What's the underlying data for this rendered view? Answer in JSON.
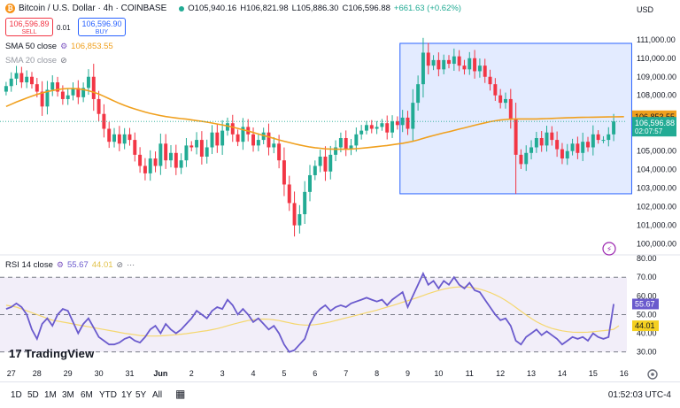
{
  "header": {
    "symbol": "Bitcoin / U.S. Dollar · 4h · COINBASE",
    "open": "O105,940.16",
    "high": "H106,821.98",
    "low": "L105,886.30",
    "close": "C106,596.88",
    "change": "+661.63 (+0.62%)",
    "sell_price": "106,596.89",
    "sell_label": "SELL",
    "spread": "0.01",
    "buy_price": "106,596.90",
    "buy_label": "BUY",
    "currency": "USD"
  },
  "legend": {
    "sma50": "SMA 50 close",
    "sma50_value": "106,853.55",
    "sma20": "SMA 20 close",
    "rsi": "RSI 14 close",
    "rsi_value": "55.67",
    "rsi_ma_value": "44.01"
  },
  "colors": {
    "up": "#22ab94",
    "down": "#f23645",
    "sma": "#f0a01e",
    "rsi": "#6a5acd",
    "rsi_ma": "#f5d76e",
    "box": "#2962ff"
  },
  "logo": "TradingView",
  "timeframes": [
    "1D",
    "5D",
    "1M",
    "3M",
    "6M",
    "YTD",
    "1Y",
    "5Y",
    "All"
  ],
  "clock": "01:52:03 UTC-4",
  "chart_data": [
    {
      "type": "candlestick",
      "title": "Bitcoin / U.S. Dollar · 4h · COINBASE",
      "ylim": [
        99600,
        111800
      ],
      "y_ticks": [
        "111,000.00",
        "110,000.00",
        "109,000.00",
        "108,000.00",
        "107,000.00",
        "106,000.00",
        "105,000.00",
        "104,000.00",
        "103,000.00",
        "102,000.00",
        "101,000.00",
        "100,000.00"
      ],
      "y_tick_values": [
        111000,
        110000,
        109000,
        108000,
        107000,
        106000,
        105000,
        104000,
        103000,
        102000,
        101000,
        100000
      ],
      "x_ticks": [
        "27",
        "28",
        "29",
        "30",
        "31",
        "Jun",
        "2",
        "3",
        "4",
        "5",
        "6",
        "7",
        "8",
        "9",
        "10",
        "11",
        "12",
        "13",
        "14",
        "15",
        "16"
      ],
      "x_tick_index": [
        1,
        6,
        12,
        18,
        24,
        30,
        36,
        42,
        48,
        54,
        60,
        66,
        72,
        78,
        84,
        90,
        96,
        102,
        108,
        114,
        120
      ],
      "close_label": "106,596.88",
      "close_value": 106596.88,
      "countdown": "02:07:57",
      "sma_label": "106,853.55",
      "sma_value": 106853.55,
      "box_range": {
        "i0": 77,
        "i1": 121,
        "low": 102700,
        "high": 110800
      },
      "closes": [
        108500,
        108900,
        109200,
        108700,
        109000,
        108600,
        108200,
        107400,
        108300,
        108700,
        108200,
        107800,
        108000,
        108400,
        107900,
        108400,
        109000,
        107800,
        107000,
        106200,
        105500,
        105900,
        105400,
        105900,
        105600,
        104800,
        104200,
        103800,
        104600,
        104200,
        105400,
        104500,
        104900,
        104100,
        104500,
        105300,
        105200,
        105600,
        104700,
        105200,
        106000,
        105300,
        106100,
        106500,
        105900,
        105500,
        106300,
        105900,
        105300,
        105600,
        106000,
        105200,
        105400,
        104500,
        103200,
        102200,
        101000,
        101600,
        102800,
        103700,
        104200,
        104700,
        103900,
        104800,
        105200,
        105700,
        105100,
        105300,
        105900,
        106100,
        106400,
        106200,
        106300,
        106500,
        106000,
        106600,
        106400,
        106800,
        106200,
        107600,
        108600,
        110300,
        109600,
        109900,
        109400,
        109900,
        109700,
        110100,
        109600,
        109400,
        110000,
        109300,
        109600,
        109000,
        108600,
        108000,
        107600,
        107800,
        106700,
        104800,
        104300,
        104900,
        105200,
        105700,
        105300,
        106000,
        105600,
        105100,
        104600,
        105000,
        105400,
        104900,
        105500,
        105200,
        105900,
        105600,
        105600,
        105900,
        106596.88
      ],
      "sma50": [
        107400,
        107520,
        107640,
        107750,
        107860,
        107960,
        108050,
        108130,
        108200,
        108260,
        108310,
        108350,
        108370,
        108370,
        108350,
        108310,
        108250,
        108170,
        108070,
        107950,
        107820,
        107690,
        107570,
        107460,
        107360,
        107270,
        107180,
        107100,
        107030,
        106970,
        106910,
        106860,
        106820,
        106780,
        106750,
        106720,
        106680,
        106640,
        106600,
        106560,
        106510,
        106460,
        106410,
        106350,
        106290,
        106220,
        106150,
        106080,
        106000,
        105920,
        105840,
        105760,
        105680,
        105600,
        105530,
        105460,
        105390,
        105330,
        105270,
        105220,
        105180,
        105150,
        105120,
        105110,
        105100,
        105100,
        105100,
        105110,
        105130,
        105150,
        105180,
        105210,
        105240,
        105270,
        105300,
        105340,
        105380,
        105420,
        105470,
        105530,
        105600,
        105680,
        105760,
        105840,
        105910,
        105980,
        106040,
        106110,
        106180,
        106250,
        106320,
        106390,
        106460,
        106520,
        106580,
        106630,
        106670,
        106700,
        106720,
        106730,
        106730,
        106730,
        106730,
        106730,
        106740,
        106750,
        106760,
        106770,
        106780,
        106790,
        106800,
        106810,
        106815,
        106820,
        106825,
        106830,
        106835,
        106840,
        106845,
        106850,
        106853.55
      ]
    },
    {
      "type": "line",
      "title": "RSI 14 close",
      "ylim": [
        27,
        81
      ],
      "y_ticks": [
        "80.00",
        "70.00",
        "60.00",
        "50.00",
        "40.00",
        "30.00"
      ],
      "y_tick_values": [
        80,
        70,
        60,
        50,
        40,
        30
      ],
      "bands": [
        70,
        50,
        30
      ],
      "rsi": [
        53,
        54,
        56,
        54,
        50,
        42,
        37,
        45,
        48,
        44,
        50,
        53,
        52,
        46,
        40,
        45,
        48,
        43,
        38,
        36,
        34,
        34,
        35,
        37,
        38,
        36,
        35,
        38,
        42,
        44,
        40,
        45,
        42,
        40,
        42,
        45,
        48,
        52,
        50,
        48,
        52,
        54,
        53,
        58,
        55,
        50,
        53,
        50,
        46,
        48,
        45,
        42,
        44,
        40,
        34,
        30,
        31,
        34,
        37,
        45,
        50,
        53,
        55,
        52,
        54,
        55,
        54,
        56,
        57,
        58,
        59,
        58,
        57,
        58,
        55,
        58,
        60,
        62,
        54,
        60,
        66,
        72,
        66,
        68,
        64,
        68,
        66,
        70,
        66,
        64,
        67,
        63,
        62,
        58,
        54,
        50,
        47,
        48,
        44,
        36,
        34,
        38,
        40,
        42,
        39,
        41,
        39,
        37,
        34,
        36,
        38,
        37,
        38,
        36,
        40,
        38,
        37,
        38,
        55.67
      ],
      "rsi_ma": [
        55,
        54.5,
        54,
        53,
        52,
        51,
        50,
        49,
        48,
        47,
        46.5,
        46,
        45.5,
        45,
        44.5,
        44,
        43.5,
        43,
        42.5,
        42,
        41.5,
        41,
        40.5,
        40,
        39.6,
        39.2,
        38.8,
        38.6,
        38.5,
        38.5,
        38.6,
        38.8,
        39,
        39.2,
        39.5,
        39.8,
        40.2,
        40.6,
        41,
        41.4,
        41.9,
        42.5,
        43.2,
        44,
        44.8,
        45.5,
        46.2,
        46.8,
        47.2,
        47.5,
        47.6,
        47.5,
        47.2,
        46.8,
        46.2,
        45.6,
        45,
        44.6,
        44.4,
        44.4,
        44.6,
        45,
        45.5,
        46.1,
        46.8,
        47.5,
        48.2,
        48.9,
        49.6,
        50.3,
        51,
        51.7,
        52.4,
        53.2,
        54,
        54.8,
        55.7,
        56.6,
        57.4,
        58.3,
        59.2,
        60.2,
        61.2,
        62.1,
        62.9,
        63.6,
        64.2,
        64.6,
        64.8,
        64.8,
        64.6,
        64.2,
        63.6,
        62.8,
        61.8,
        60.6,
        59.2,
        57.6,
        55.8,
        53.8,
        51.8,
        49.8,
        47.9,
        46.2,
        44.8,
        43.6,
        42.6,
        41.9,
        41.3,
        40.9,
        40.6,
        40.5,
        40.5,
        40.6,
        40.8,
        41.1,
        41.4,
        41.7,
        42.1,
        44.01
      ]
    }
  ]
}
